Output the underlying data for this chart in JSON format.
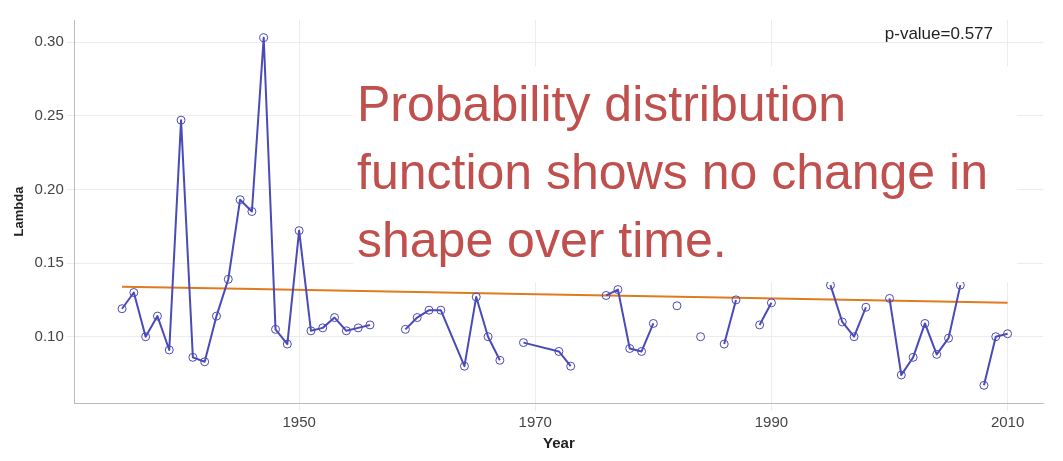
{
  "chart_data": {
    "type": "line",
    "xlabel": "Year",
    "ylabel": "Lambda",
    "xlim": [
      1931,
      2013
    ],
    "xticks": [
      1950,
      1970,
      1990,
      2010
    ],
    "ylim": [
      0.055,
      0.315
    ],
    "yticks": [
      {
        "value": 0.1,
        "label": "0.10"
      },
      0.15,
      {
        "value": 0.2,
        "label": "0.20"
      },
      0.25,
      {
        "value": 0.3,
        "label": "0.30"
      }
    ],
    "grid": true,
    "marker": "circle",
    "line_style": "solid",
    "annotations": [
      "p-value=0.577",
      "Probability distribution function shows no change in shape over time."
    ],
    "series": [
      {
        "color": "#4a4ab8",
        "x": [
          1935,
          1936,
          1937,
          1938,
          1939,
          1940,
          1941,
          1942,
          1943,
          1944,
          1945,
          1946,
          1947,
          1948,
          1949,
          1950,
          1951,
          1952,
          1953,
          1954,
          1955,
          1956,
          1957,
          1958,
          1959,
          1960,
          1961,
          1962,
          1964,
          1965,
          1966,
          1967,
          1968,
          1969,
          1972,
          1973,
          1974,
          1975,
          1976,
          1977,
          1978,
          1979,
          1980,
          1981,
          1982,
          1983,
          1984,
          1985,
          1986,
          1987,
          1988,
          1989,
          1990,
          1991,
          1992,
          1993,
          1994,
          1995,
          1996,
          1997,
          1998,
          1999,
          2000,
          2001,
          2002,
          2003,
          2004,
          2005,
          2006,
          2007,
          2008,
          2009,
          2010
        ],
        "values": [
          0.119,
          0.13,
          0.1,
          0.114,
          0.091,
          0.247,
          0.086,
          0.083,
          0.114,
          0.139,
          0.193,
          0.185,
          0.303,
          0.105,
          0.095,
          0.172,
          0.104,
          0.106,
          0.113,
          0.104,
          0.106,
          0.108,
          null,
          null,
          0.105,
          0.113,
          0.118,
          0.118,
          0.08,
          0.127,
          0.1,
          0.084,
          null,
          0.096,
          0.09,
          0.08,
          null,
          null,
          0.128,
          0.132,
          0.092,
          0.09,
          0.109,
          null,
          0.121,
          null,
          0.1,
          null,
          0.095,
          0.125,
          null,
          0.108,
          0.123,
          null,
          null,
          null,
          null,
          0.135,
          0.11,
          0.1,
          0.12,
          null,
          0.126,
          0.074,
          0.086,
          0.109,
          0.088,
          0.099,
          0.135,
          null,
          0.067,
          0.1,
          0.102
        ]
      },
      {
        "type": "line",
        "marker": "none",
        "color": "#e07a1f",
        "x": [
          1935,
          2010
        ],
        "values": [
          0.134,
          0.123
        ]
      }
    ]
  }
}
